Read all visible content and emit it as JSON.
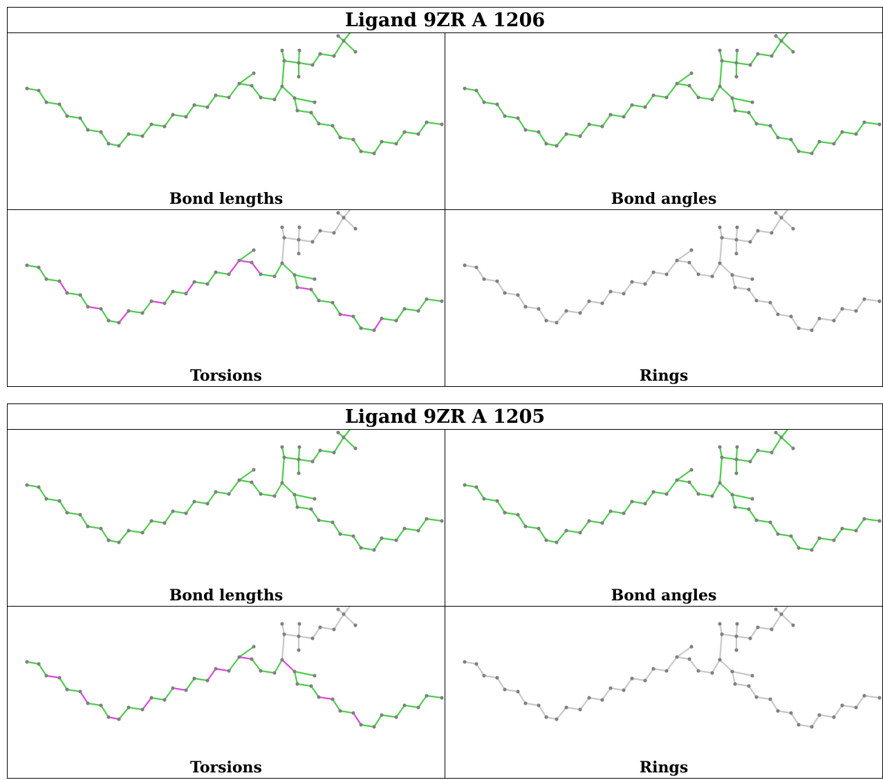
{
  "ligands": [
    {
      "title": "Ligand 9ZR A 1206",
      "panels": [
        {
          "label": "Bond lengths",
          "scheme": "green"
        },
        {
          "label": "Bond angles",
          "scheme": "green"
        },
        {
          "label": "Torsions",
          "scheme": "torsions"
        },
        {
          "label": "Rings",
          "scheme": "gray"
        }
      ],
      "outlier_bonds": [
        3,
        6,
        9,
        12,
        15,
        19,
        20,
        21,
        26,
        30,
        33
      ]
    },
    {
      "title": "Ligand 9ZR A 1205",
      "panels": [
        {
          "label": "Bond lengths",
          "scheme": "green"
        },
        {
          "label": "Bond angles",
          "scheme": "green"
        },
        {
          "label": "Torsions",
          "scheme": "torsions"
        },
        {
          "label": "Rings",
          "scheme": "gray"
        }
      ],
      "outlier_bonds": [
        2,
        5,
        8,
        11,
        14,
        17,
        18,
        20,
        24,
        28,
        31
      ]
    }
  ],
  "colors": {
    "ok_bond": "#4ccd4c",
    "outlier_bond": "#dd44dd",
    "neutral_bond": "#c8c8c8",
    "atom": "#808080"
  }
}
